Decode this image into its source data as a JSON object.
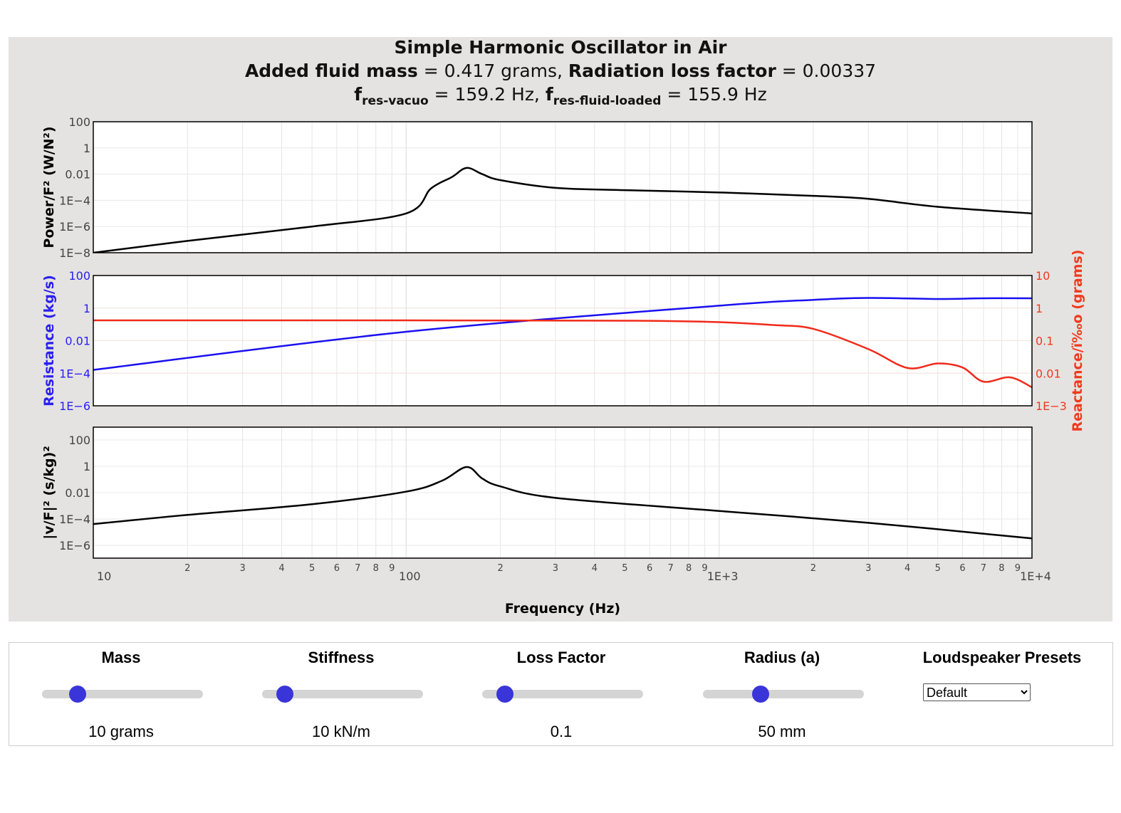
{
  "header": {
    "title": "Simple Harmonic Oscillator in Air",
    "line2": {
      "added_mass_label": "Added fluid mass",
      "added_mass_value": " = 0.417 grams, ",
      "loss_label": "Radiation loss factor",
      "loss_value": " = 0.00337"
    },
    "line3": {
      "f1": "f",
      "f1_sub": "res-vacuo",
      "f1_value": " = 159.2 Hz, ",
      "f2": "f",
      "f2_sub": "res-fluid-loaded",
      "f2_value": " = 155.9 Hz"
    }
  },
  "chart_data": {
    "type": "line",
    "xlabel": "Frequency (Hz)",
    "x_scale": "log",
    "xlim": [
      10,
      10000
    ],
    "x_major_ticks": [
      "10",
      "100",
      "1E+3",
      "1E+4"
    ],
    "x_minor_ticks": [
      "2",
      "3",
      "4",
      "5",
      "6",
      "7",
      "8",
      "9"
    ],
    "grid": true,
    "colors": {
      "black": "#000000",
      "resistance": "#1a10f0",
      "reactance": "#f02a1a"
    },
    "panels": [
      {
        "ylabel": "Power/F² (W/N²)",
        "y_scale": "log",
        "ylim": [
          1e-08,
          100
        ],
        "y_ticks": [
          "100",
          "1",
          "0.01",
          "1E−4",
          "1E−6",
          "1E−8"
        ],
        "series": [
          {
            "color": "#000000",
            "x": [
              10,
              20,
              50,
              100,
              120,
              140,
              156,
              175,
              200,
              300,
              500,
              1000,
              2000,
              3000,
              5000,
              10000
            ],
            "y": [
              1e-08,
              8e-08,
              1e-06,
              1e-05,
              0.0008,
              0.006,
              0.03,
              0.01,
              0.0035,
              0.0009,
              0.0006,
              0.0004,
              0.00022,
              0.00013,
              3.2e-05,
              1e-05
            ]
          }
        ]
      },
      {
        "ylabel": "Resistance (kg/s)",
        "y_scale": "log",
        "ylim": [
          1e-06,
          100
        ],
        "y_ticks": [
          "100",
          "1",
          "0.01",
          "1E−4",
          "1E−6"
        ],
        "ylabel_right": "Reactance/ï‰o (grams)",
        "ylim_right": [
          0.001,
          10
        ],
        "y_ticks_right": [
          "10",
          "1",
          "0.1",
          "0.01",
          "1E−3"
        ],
        "series": [
          {
            "color": "#1a10f0",
            "axis": "left",
            "x": [
              10,
              100,
              1000,
              2000,
              3000,
              5000,
              7000,
              10000
            ],
            "y": [
              0.00016,
              0.035,
              1.4,
              3.2,
              4.2,
              3.6,
              4.0,
              4.0
            ]
          },
          {
            "color": "#f02a1a",
            "axis": "right",
            "x": [
              10,
              100,
              500,
              1000,
              1500,
              2000,
              3000,
              4000,
              5000,
              6000,
              7000,
              8500,
              10000
            ],
            "y": [
              0.42,
              0.42,
              0.41,
              0.37,
              0.3,
              0.23,
              0.055,
              0.0145,
              0.02,
              0.015,
              0.0055,
              0.0075,
              0.0037
            ]
          }
        ]
      },
      {
        "ylabel": "|v/F|² (s/kg)²",
        "y_scale": "log",
        "ylim": [
          1e-07,
          1000
        ],
        "y_ticks": [
          "100",
          "1",
          "0.01",
          "1E−4",
          "1E−6"
        ],
        "series": [
          {
            "color": "#000000",
            "x": [
              10,
              20,
              50,
              100,
              130,
              156,
              175,
              200,
              300,
              1000,
              3000,
              10000
            ],
            "y": [
              4e-05,
              0.0002,
              0.0013,
              0.012,
              0.08,
              0.9,
              0.12,
              0.03,
              0.004,
              0.0004,
              5e-05,
              3.2e-06
            ]
          }
        ]
      }
    ]
  },
  "controls": [
    {
      "label": "Mass",
      "value": "10 grams",
      "position": 0.22
    },
    {
      "label": "Stiffness",
      "value": "10 kN/m",
      "position": 0.14
    },
    {
      "label": "Loss Factor",
      "value": "0.1",
      "position": 0.14
    },
    {
      "label": "Radius (a)",
      "value": "50 mm",
      "position": 0.36
    }
  ],
  "presets": {
    "label": "Loudspeaker Presets",
    "selected": "Default"
  }
}
